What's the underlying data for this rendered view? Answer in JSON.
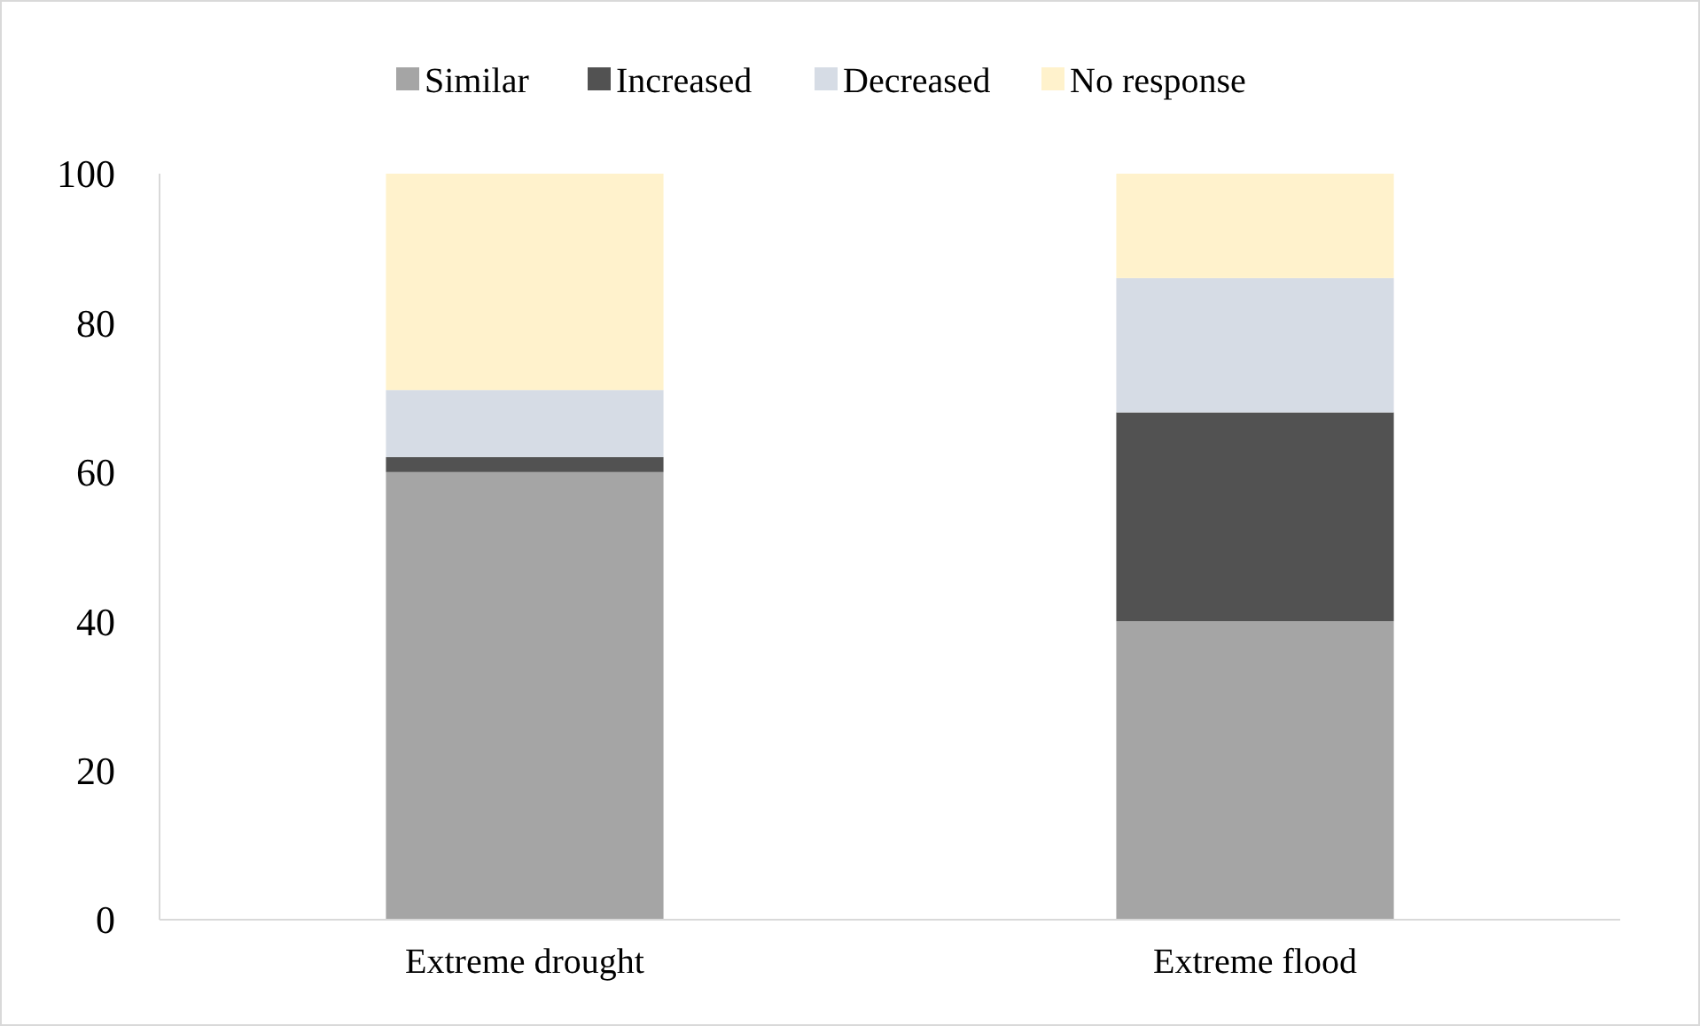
{
  "chart_data": {
    "type": "bar",
    "stacked": true,
    "categories": [
      "Extreme drought",
      "Extreme flood"
    ],
    "series": [
      {
        "name": "Similar",
        "color": "#a5a5a5",
        "values": [
          60,
          40
        ]
      },
      {
        "name": "Increased",
        "color": "#525252",
        "values": [
          2,
          28
        ]
      },
      {
        "name": "Decreased",
        "color": "#d6dce5",
        "values": [
          9,
          18
        ]
      },
      {
        "name": "No response",
        "color": "#fff2cc",
        "values": [
          29,
          14
        ]
      }
    ],
    "ylim": [
      0,
      100
    ],
    "yticks": [
      0,
      20,
      40,
      60,
      80,
      100
    ],
    "grid": false,
    "legend": "top"
  }
}
